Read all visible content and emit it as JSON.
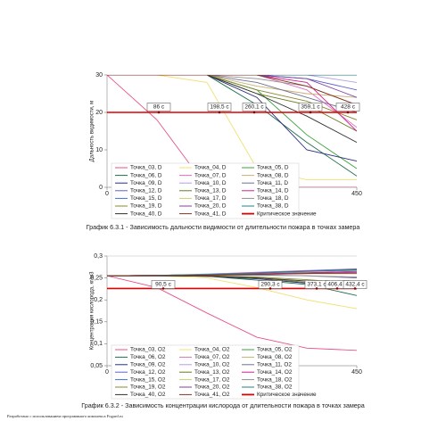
{
  "chart_data": [
    {
      "type": "line",
      "ylabel": "Дальность видимости, м",
      "x": [
        0,
        90,
        180,
        270,
        360,
        450
      ],
      "xlim": [
        0,
        450
      ],
      "xticks": [
        0,
        450
      ],
      "ylim": [
        0,
        30
      ],
      "yticks": [
        0,
        10,
        20,
        30
      ],
      "critical": {
        "name": "Критическое значение",
        "value": 20,
        "color": "#e00000"
      },
      "annotations": [
        "86 с",
        "198,5 с",
        "260,1 с",
        "359,1 с",
        "428 с"
      ],
      "series": [
        {
          "name": "Точка_03, D",
          "color": "#e8508c",
          "values": [
            30,
            18,
            0,
            0,
            0,
            0
          ]
        },
        {
          "name": "Точка_04, D",
          "color": "#f0e070",
          "values": [
            30,
            30,
            28,
            5,
            2,
            2
          ]
        },
        {
          "name": "Точка_05, D",
          "color": "#3aa03a",
          "values": [
            30,
            30,
            30,
            26,
            14,
            5
          ]
        },
        {
          "name": "Точка_06, D",
          "color": "#1f6f4f",
          "values": [
            30,
            30,
            30,
            22,
            12,
            3
          ]
        },
        {
          "name": "Точка_07, D",
          "color": "#e070c0",
          "values": [
            30,
            30,
            30,
            30,
            26,
            16
          ]
        },
        {
          "name": "Точка_08, D",
          "color": "#c8b070",
          "values": [
            30,
            30,
            30,
            27,
            25,
            24
          ]
        },
        {
          "name": "Точка_09, D",
          "color": "#2a2a80",
          "values": [
            30,
            30,
            30,
            24,
            10,
            7
          ]
        },
        {
          "name": "Точка_10, D",
          "color": "#b0a0e0",
          "values": [
            30,
            30,
            30,
            30,
            30,
            28
          ]
        },
        {
          "name": "Точка_11, D",
          "color": "#707090",
          "values": [
            30,
            30,
            30,
            28,
            24,
            20
          ]
        },
        {
          "name": "Точка_12, D",
          "color": "#6060d0",
          "values": [
            30,
            30,
            30,
            30,
            29,
            26
          ]
        },
        {
          "name": "Точка_13, D",
          "color": "#6a7a20",
          "values": [
            30,
            30,
            30,
            25,
            22,
            15
          ]
        },
        {
          "name": "Точка_14, D",
          "color": "#d02090",
          "values": [
            30,
            30,
            30,
            30,
            28,
            15
          ]
        },
        {
          "name": "Точка_15, D",
          "color": "#4070d0",
          "values": [
            30,
            30,
            30,
            30,
            30,
            30
          ]
        },
        {
          "name": "Точка_17, D",
          "color": "#d0d070",
          "values": [
            30,
            30,
            30,
            30,
            30,
            30
          ]
        },
        {
          "name": "Точка_18, D",
          "color": "#909090",
          "values": [
            30,
            30,
            30,
            29,
            27,
            22
          ]
        },
        {
          "name": "Точка_19, D",
          "color": "#8a8a30",
          "values": [
            30,
            30,
            30,
            26,
            23,
            18
          ]
        },
        {
          "name": "Точка_20, D",
          "color": "#8040a0",
          "values": [
            30,
            30,
            30,
            30,
            29,
            24
          ]
        },
        {
          "name": "Точка_38, D",
          "color": "#208080",
          "values": [
            30,
            30,
            30,
            30,
            30,
            30
          ]
        },
        {
          "name": "Точка_40, D",
          "color": "#303030",
          "values": [
            30,
            30,
            30,
            25,
            19,
            12
          ]
        },
        {
          "name": "Точка_41, D",
          "color": "#8a3020",
          "values": [
            30,
            30,
            30,
            30,
            27,
            22
          ]
        }
      ]
    },
    {
      "type": "line",
      "ylabel": "Концентрация кислорода, кг/м3",
      "x": [
        0,
        90,
        180,
        270,
        360,
        450
      ],
      "xlim": [
        0,
        450
      ],
      "xticks": [
        0,
        450
      ],
      "ylim": [
        0.05,
        0.3
      ],
      "yticks": [
        {
          "value": 0.05,
          "label": "0,05"
        },
        {
          "value": 0.1,
          "label": "0,1"
        },
        {
          "value": 0.15,
          "label": "0,15"
        },
        {
          "value": 0.2,
          "label": "0,2"
        },
        {
          "value": 0.25,
          "label": "0,25"
        },
        {
          "value": 0.3,
          "label": "0,3"
        }
      ],
      "critical": {
        "name": "Критическое значение",
        "value": 0.226,
        "color": "#e00000"
      },
      "annotations": [
        "90,5 с",
        "290,3 с",
        "373,1 с",
        "406,4 с",
        "432,4 с"
      ],
      "series": [
        {
          "name": "Точка_03, O2",
          "color": "#e8508c",
          "values": [
            0.255,
            0.228,
            0.17,
            0.115,
            0.09,
            0.085
          ]
        },
        {
          "name": "Точка_04, O2",
          "color": "#f0e070",
          "values": [
            0.255,
            0.255,
            0.25,
            0.228,
            0.2,
            0.18
          ]
        },
        {
          "name": "Точка_05, O2",
          "color": "#3aa03a",
          "values": [
            0.255,
            0.256,
            0.258,
            0.262,
            0.266,
            0.27
          ]
        },
        {
          "name": "Точка_06, O2",
          "color": "#1f6f4f",
          "values": [
            0.255,
            0.255,
            0.254,
            0.245,
            0.235,
            0.21
          ]
        },
        {
          "name": "Точка_07, O2",
          "color": "#e070c0",
          "values": [
            0.255,
            0.256,
            0.259,
            0.263,
            0.267,
            0.271
          ]
        },
        {
          "name": "Точка_08, O2",
          "color": "#c8b070",
          "values": [
            0.255,
            0.255,
            0.256,
            0.258,
            0.26,
            0.262
          ]
        },
        {
          "name": "Точка_09, O2",
          "color": "#2a2a80",
          "values": [
            0.255,
            0.255,
            0.254,
            0.248,
            0.238,
            0.225
          ]
        },
        {
          "name": "Точка_10, O2",
          "color": "#b0a0e0",
          "values": [
            0.255,
            0.256,
            0.258,
            0.261,
            0.264,
            0.268
          ]
        },
        {
          "name": "Точка_11, O2",
          "color": "#707090",
          "values": [
            0.255,
            0.255,
            0.256,
            0.257,
            0.255,
            0.25
          ]
        },
        {
          "name": "Точка_12, O2",
          "color": "#6060d0",
          "values": [
            0.255,
            0.256,
            0.258,
            0.261,
            0.265,
            0.269
          ]
        },
        {
          "name": "Точка_13, O2",
          "color": "#6a7a20",
          "values": [
            0.255,
            0.255,
            0.254,
            0.25,
            0.24,
            0.228
          ]
        },
        {
          "name": "Точка_14, O2",
          "color": "#d02090",
          "values": [
            0.255,
            0.256,
            0.257,
            0.26,
            0.262,
            0.265
          ]
        },
        {
          "name": "Точка_15, O2",
          "color": "#4070d0",
          "values": [
            0.255,
            0.256,
            0.258,
            0.262,
            0.266,
            0.27
          ]
        },
        {
          "name": "Точка_17, O2",
          "color": "#d0d070",
          "values": [
            0.255,
            0.256,
            0.258,
            0.261,
            0.264,
            0.267
          ]
        },
        {
          "name": "Точка_18, O2",
          "color": "#909090",
          "values": [
            0.255,
            0.255,
            0.256,
            0.256,
            0.255,
            0.252
          ]
        },
        {
          "name": "Точка_19, O2",
          "color": "#8a8a30",
          "values": [
            0.255,
            0.255,
            0.255,
            0.252,
            0.246,
            0.238
          ]
        },
        {
          "name": "Точка_20, O2",
          "color": "#8040a0",
          "values": [
            0.255,
            0.256,
            0.257,
            0.259,
            0.261,
            0.263
          ]
        },
        {
          "name": "Точка_38, O2",
          "color": "#208080",
          "values": [
            0.255,
            0.256,
            0.258,
            0.261,
            0.265,
            0.268
          ]
        },
        {
          "name": "Точка_40, O2",
          "color": "#303030",
          "values": [
            0.255,
            0.255,
            0.254,
            0.25,
            0.243,
            0.232
          ]
        },
        {
          "name": "Точка_41, O2",
          "color": "#8a3020",
          "values": [
            0.255,
            0.255,
            0.256,
            0.258,
            0.26,
            0.26
          ]
        }
      ]
    }
  ],
  "captions": [
    "График 6.3.1 - Зависимость дальности видимости от длительности пожара в точках замера",
    "График 6.3.2 - Зависимость концентрации кислорода от длительности пожара в точках замера"
  ],
  "footer": "Разработано с использованием программного комплекса Fogard.ru"
}
